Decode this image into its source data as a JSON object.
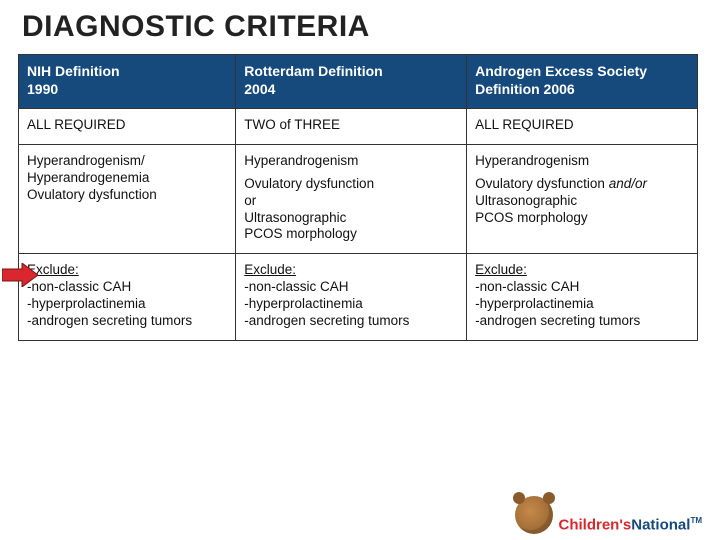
{
  "colors": {
    "band": "#e73e3a",
    "header_bg": "#174a7c",
    "header_text": "#ffffff",
    "cell_text": "#111111",
    "border": "#333333",
    "brand_red": "#d9272e",
    "brand_blue": "#174a7c",
    "arrow_fill": "#d9272e",
    "arrow_stroke": "#7a1414"
  },
  "title": "DIAGNOSTIC CRITERIA",
  "table": {
    "columns": [
      {
        "name": "NIH Definition",
        "year": "1990"
      },
      {
        "name": "Rotterdam Definition",
        "year": "2004"
      },
      {
        "name": "Androgen Excess Society Definition 2006",
        "year": ""
      }
    ],
    "row_required": [
      "ALL REQUIRED",
      "TWO of THREE",
      "ALL REQUIRED"
    ],
    "row_criteria": {
      "c1": {
        "l1": "Hyperandrogenism/",
        "l2": "Hyperandrogenemia",
        "l3": "Ovulatory dysfunction"
      },
      "c2": {
        "top": "Hyperandrogenism",
        "b1": "Ovulatory dysfunction",
        "b2": "or",
        "b3": "Ultrasonographic",
        "b4": "PCOS morphology"
      },
      "c3": {
        "top": "Hyperandrogenism",
        "b1a": "Ovulatory dysfunction ",
        "b1b": "and/or",
        "b2": "Ultrasonographic",
        "b3": "PCOS morphology"
      }
    },
    "row_exclude": {
      "head": "Exclude:",
      "l1": "-non-classic CAH",
      "l2": "-hyperprolactinemia",
      "l3": "-androgen secreting tumors"
    }
  },
  "arrow": {
    "width": 36,
    "height": 24
  },
  "footer": {
    "brand1": "Children's",
    "brand2": "National",
    "tm": "TM"
  }
}
